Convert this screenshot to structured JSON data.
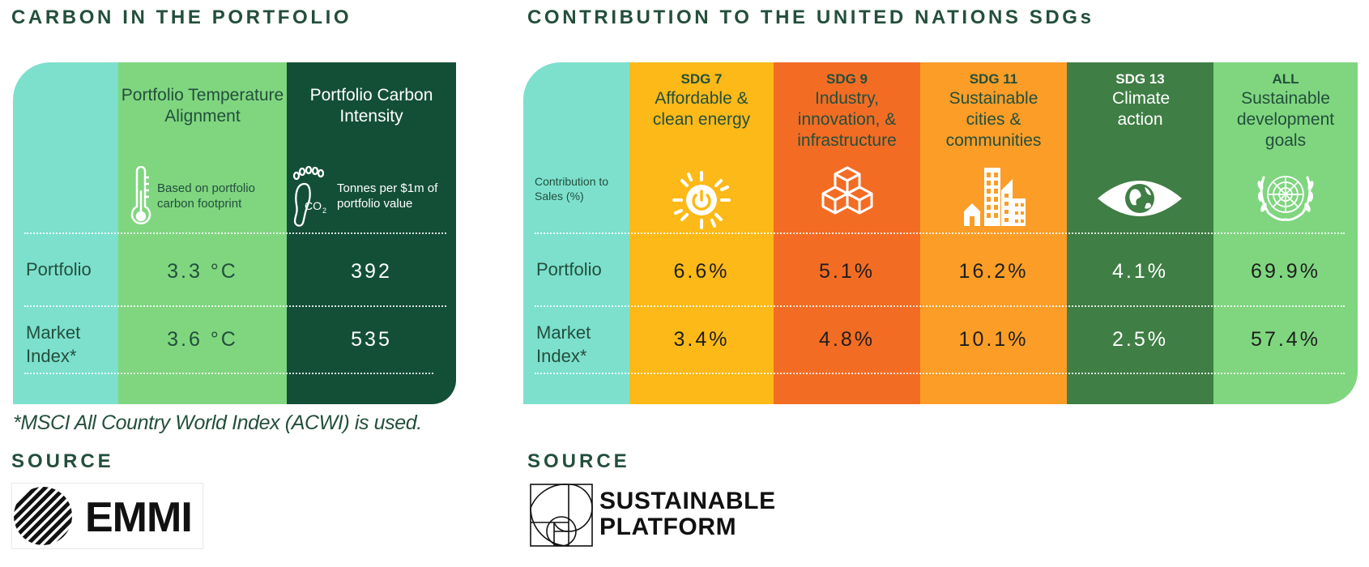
{
  "carbon": {
    "title": "CARBON IN THE PORTFOLIO",
    "columns": [
      {
        "header": "Portfolio Temperature Alignment",
        "icon": "thermometer-icon",
        "caption": "Based on portfolio carbon footprint",
        "portfolio": "3.3 °C",
        "market": "3.6 °C"
      },
      {
        "header": "Portfolio Carbon Intensity",
        "icon": "co2-footprint-icon",
        "caption": "Tonnes per $1m of portfolio value",
        "portfolio": "392",
        "market": "535"
      }
    ],
    "rows": {
      "portfolio": "Portfolio",
      "market": "Market Index*"
    },
    "footnote": "*MSCI All Country World Index (ACWI) is used.",
    "source_label": "SOURCE",
    "source_logo": "EMMI"
  },
  "sdg": {
    "title": "CONTRIBUTION TO THE UNITED NATIONS SDGs",
    "row_caption": "Contribution to Sales (%)",
    "rows": {
      "portfolio": "Portfolio",
      "market": "Market Index*"
    },
    "columns": [
      {
        "code": "SDG 7",
        "name": "Affordable & clean energy",
        "icon": "sun-power-icon",
        "portfolio": "6.6%",
        "market": "3.4%"
      },
      {
        "code": "SDG 9",
        "name": "Industry, innovation, & infrastructure",
        "icon": "cubes-icon",
        "portfolio": "5.1%",
        "market": "4.8%"
      },
      {
        "code": "SDG 11",
        "name": "Sustainable cities & communities",
        "icon": "city-buildings-icon",
        "portfolio": "16.2%",
        "market": "10.1%"
      },
      {
        "code": "SDG 13",
        "name": "Climate action",
        "icon": "eye-globe-icon",
        "portfolio": "4.1%",
        "market": "2.5%"
      },
      {
        "code": "ALL",
        "name": "Sustainable development goals",
        "icon": "un-emblem-icon",
        "portfolio": "69.9%",
        "market": "57.4%"
      }
    ],
    "source_label": "SOURCE",
    "source_logo_line1": "SUSTAINABLE",
    "source_logo_line2": "PLATFORM"
  },
  "colors": {
    "teal": "#7ce0cd",
    "light_green": "#7fd67f",
    "dark_green": "#134f37",
    "sdg7_yellow": "#fdb918",
    "sdg9_orange": "#f36c24",
    "sdg11_orange": "#fb9d27",
    "sdg13_green": "#3f7e44",
    "all_green": "#7fd67f",
    "title_green": "#234f3c"
  }
}
